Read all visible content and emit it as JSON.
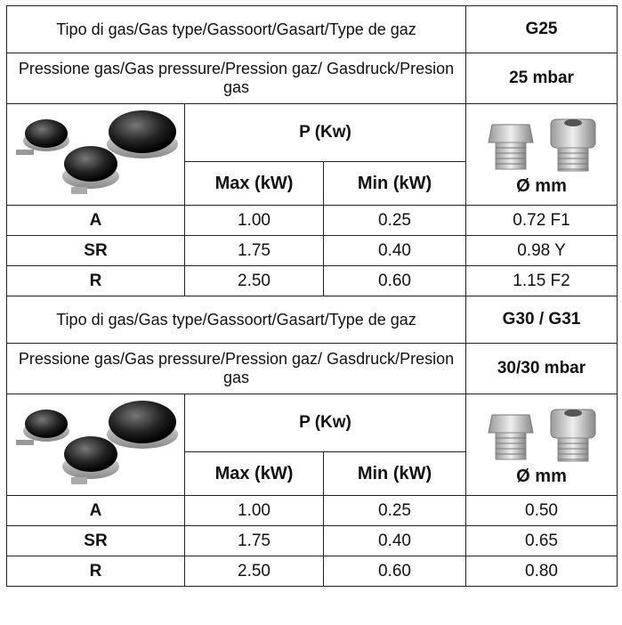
{
  "tables": [
    {
      "gas_type_label": "Tipo di gas/Gas type/Gassoort/Gasart/Type de gaz",
      "gas_type": "G25",
      "pressure_label": "Pressione gas/Gas pressure/Pression gaz/ Gasdruck/Presion gas",
      "pressure": "25 mbar",
      "power_header": "P (Kw)",
      "max_header": "Max (kW)",
      "min_header": "Min (kW)",
      "nozzle_header": "Ø mm",
      "rows": [
        [
          "A",
          "1.00",
          "0.25",
          "0.72 F1"
        ],
        [
          "SR",
          "1.75",
          "0.40",
          "0.98 Y"
        ],
        [
          "R",
          "2.50",
          "0.60",
          "1.15 F2"
        ]
      ]
    },
    {
      "gas_type_label": "Tipo di gas/Gas type/Gassoort/Gasart/Type de gaz",
      "gas_type": "G30 / G31",
      "pressure_label": "Pressione gas/Gas pressure/Pression gaz/ Gasdruck/Presion gas",
      "pressure": "30/30 mbar",
      "power_header": "P (Kw)",
      "max_header": "Max (kW)",
      "min_header": "Min (kW)",
      "nozzle_header": "Ø mm",
      "rows": [
        [
          "A",
          "1.00",
          "0.25",
          "0.50"
        ],
        [
          "SR",
          "1.75",
          "0.40",
          "0.65"
        ],
        [
          "R",
          "2.50",
          "0.60",
          "0.80"
        ]
      ]
    }
  ]
}
